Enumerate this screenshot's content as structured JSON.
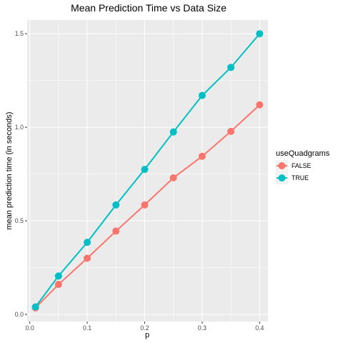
{
  "chart_data": {
    "type": "line",
    "title": "Mean Prediction Time vs Data Size",
    "xlabel": "p",
    "ylabel": "mean prediction time (in seconds)",
    "xlim": [
      -0.0045,
      0.4145
    ],
    "ylim": [
      -0.0384,
      1.5734
    ],
    "xticks": [
      "0.0",
      "0.1",
      "0.2",
      "0.3",
      "0.4"
    ],
    "xtick_values": [
      0.0,
      0.1,
      0.2,
      0.3,
      0.4
    ],
    "yticks": [
      "0.0",
      "0.5",
      "1.0",
      "1.5"
    ],
    "ytick_values": [
      0.0,
      0.5,
      1.0,
      1.5
    ],
    "grid": true,
    "legend": {
      "title": "useQuadgrams",
      "placement": "right"
    },
    "x": [
      0.01,
      0.05,
      0.1,
      0.15,
      0.2,
      0.25,
      0.3,
      0.35,
      0.4
    ],
    "series": [
      {
        "name": "FALSE",
        "color": "#F8766D",
        "values": [
          0.035,
          0.16,
          0.3,
          0.445,
          0.585,
          0.73,
          0.845,
          0.978,
          1.12
        ]
      },
      {
        "name": "TRUE",
        "color": "#00BFC4",
        "values": [
          0.04,
          0.205,
          0.385,
          0.585,
          0.775,
          0.975,
          1.17,
          1.32,
          1.5
        ]
      }
    ]
  }
}
